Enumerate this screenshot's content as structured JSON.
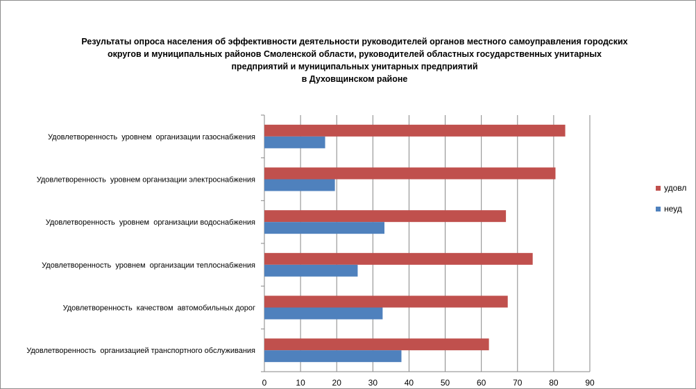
{
  "chart_data": {
    "type": "bar",
    "orientation": "horizontal",
    "title": [
      "Результаты опроса населения об эффективности деятельности руководителей органов местного самоуправления городских",
      "округов и муниципальных районов Смоленской области, руководителей областных государственных унитарных",
      "предприятий и муниципальных унитарных предприятий",
      "в Духовщинском районе"
    ],
    "categories": [
      "Удовлетворенность  уровнем  организации газоснабжения",
      "Удовлетворенность  уровнем организации электроснабжения",
      "Удовлетворенность  уровнем  организации водоснабжения",
      "Удовлетворенность  уровнем  организации теплоснабжения",
      "Удовлетворенность  качеством  автомобильных дорог",
      "Удовлетворенность  организацией транспортного обслуживания"
    ],
    "series": [
      {
        "name": "удовл",
        "color": "#c0504d",
        "values": [
          83.2,
          80.5,
          66.8,
          74.2,
          67.3,
          62.1
        ]
      },
      {
        "name": "неуд",
        "color": "#4f81bd",
        "values": [
          16.8,
          19.5,
          33.2,
          25.8,
          32.7,
          37.9
        ]
      }
    ],
    "xlim": [
      0,
      90
    ],
    "x_ticks": [
      "0",
      "10",
      "20",
      "30",
      "40",
      "50",
      "60",
      "70",
      "80",
      "90"
    ],
    "grid": true,
    "legend_position": "right"
  }
}
